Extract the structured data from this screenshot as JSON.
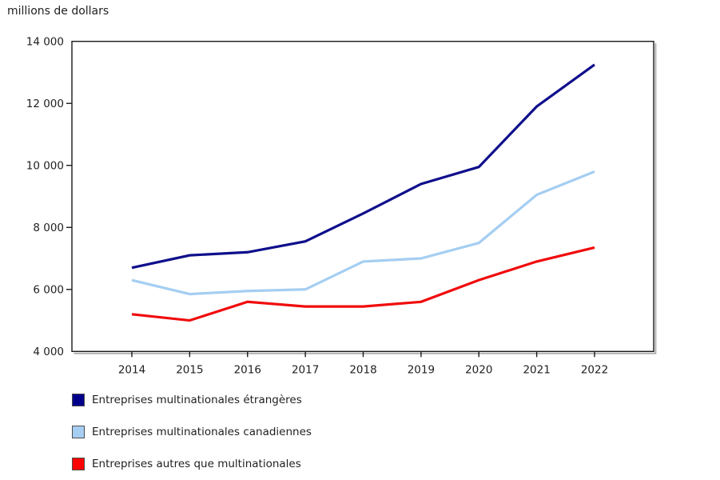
{
  "title": "millions de dollars",
  "chart_data": {
    "type": "line",
    "x_categories": [
      "2014",
      "2015",
      "2016",
      "2017",
      "2018",
      "2019",
      "2020",
      "2021",
      "2022"
    ],
    "series": [
      {
        "name": "Entreprises multinationales étrangères",
        "color": "#0f0f8c",
        "swatch_color": "#00008b",
        "values": [
          6700,
          7100,
          7200,
          7550,
          8450,
          9400,
          9950,
          11900,
          13250
        ]
      },
      {
        "name": "Entreprises multinationales canadiennes",
        "color": "#a5cef2",
        "swatch_color": "#a5cef2",
        "values": [
          6300,
          5850,
          5950,
          6000,
          6900,
          7000,
          7500,
          9050,
          9800
        ]
      },
      {
        "name": "Entreprises autres que multinationales",
        "color": "#f00c0c",
        "swatch_color": "#ff0000",
        "values": [
          5200,
          5000,
          5600,
          5450,
          5450,
          5600,
          6300,
          6900,
          7350
        ]
      }
    ],
    "ylabel": "millions de dollars",
    "ylim": [
      4000,
      14000
    ],
    "ytick_step": 2000,
    "ytick_labels": [
      "4 000",
      "6 000",
      "8 000",
      "10 000",
      "12 000",
      "14 000"
    ],
    "grid": false,
    "legend_position": "bottom-left"
  }
}
